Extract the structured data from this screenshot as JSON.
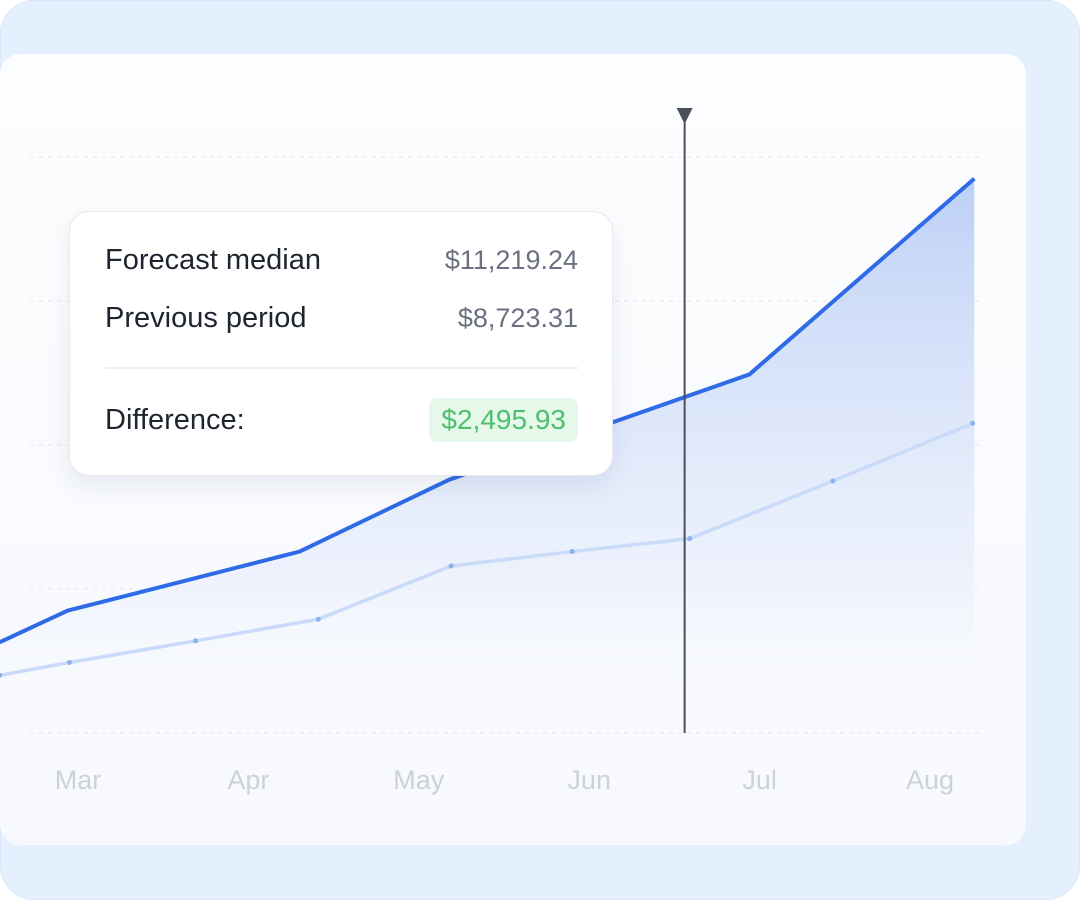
{
  "chart_data": {
    "type": "line",
    "categories": [
      "Mar",
      "Apr",
      "May",
      "Jun",
      "Jul",
      "Aug"
    ],
    "x_ticks": [
      "Mar",
      "Apr",
      "May",
      "Jun",
      "Jul",
      "Aug"
    ],
    "grid": true,
    "xlim": [
      -0.46,
      5.55
    ],
    "ylim": [
      0,
      4
    ],
    "series": [
      {
        "key": "forecast",
        "color": "#2f6be6",
        "fill": true,
        "x": [
          -0.46,
          -0.06,
          1.3,
          2.18,
          3.94,
          5.26
        ],
        "y": [
          0.63,
          0.85,
          1.26,
          1.76,
          2.49,
          3.85
        ]
      },
      {
        "key": "previous",
        "color": "#c9dbf9",
        "markers": true,
        "x": [
          -0.46,
          -0.05,
          0.69,
          1.41,
          2.19,
          2.9,
          3.59,
          4.43,
          5.25
        ],
        "y": [
          0.4,
          0.49,
          0.64,
          0.79,
          1.16,
          1.26,
          1.35,
          1.75,
          2.15
        ]
      }
    ],
    "cursor_x": 3.56
  },
  "tooltip": {
    "forecast_label": "Forecast median",
    "forecast_value": "$11,219.24",
    "previous_label": "Previous period",
    "previous_value": "$8,723.31",
    "difference_label": "Difference:",
    "difference_value": "$2,495.93"
  },
  "colors": {
    "accent": "#2f6be6",
    "positive": "#4cc06e",
    "background": "#e4f0fd"
  }
}
